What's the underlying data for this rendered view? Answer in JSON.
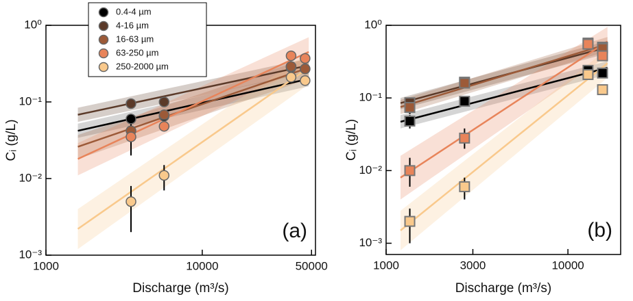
{
  "chart_data": [
    {
      "type": "scatter",
      "marker": "circle",
      "x_scale": "log",
      "y_scale": "log",
      "xlabel": "Discharge (m³/s)",
      "ylabel": "Cᵢ (g/L)",
      "panel_label": "(a)",
      "xlim": [
        1000,
        53000
      ],
      "ylim": [
        0.001,
        1
      ],
      "xticks": [
        1000,
        10000,
        50000
      ],
      "yticks": [
        {
          "value": 0.001,
          "label": "10⁻³"
        },
        {
          "value": 0.01,
          "label": "10⁻²"
        },
        {
          "value": 0.1,
          "label": "10⁻¹"
        },
        {
          "value": 1,
          "label": "10⁰"
        }
      ],
      "legend": "upper left",
      "series": [
        {
          "name": "0.4-4 µm",
          "color": "#000000",
          "x": [
            3500,
            5700,
            37000,
            45500
          ],
          "values": [
            0.06,
            0.065,
            0.28,
            0.27
          ],
          "err_low": [
            0.045,
            null,
            null,
            null
          ],
          "err_high": [
            0.07,
            null,
            null,
            null
          ],
          "fit_x": [
            1600,
            48000
          ],
          "fit_y": [
            0.042,
            0.2
          ],
          "band_low": [
            0.034,
            0.16
          ],
          "band_high": [
            0.052,
            0.25
          ]
        },
        {
          "name": "4-16 µm",
          "color": "#5b3a29",
          "x": [
            3500,
            5700,
            37000,
            45500
          ],
          "values": [
            0.095,
            0.1,
            0.29,
            0.27
          ],
          "err_low": [
            null,
            null,
            null,
            null
          ],
          "err_high": [
            null,
            null,
            null,
            null
          ],
          "fit_x": [
            1600,
            48000
          ],
          "fit_y": [
            0.068,
            0.3
          ],
          "band_low": [
            0.055,
            0.24
          ],
          "band_high": [
            0.084,
            0.37
          ]
        },
        {
          "name": "16-63 µm",
          "color": "#9c5a38",
          "x": [
            3500,
            5700,
            37000,
            45500
          ],
          "values": [
            0.042,
            0.068,
            0.29,
            0.27
          ],
          "err_low": [
            null,
            null,
            null,
            null
          ],
          "err_high": [
            null,
            null,
            null,
            null
          ],
          "fit_x": [
            1600,
            48000
          ],
          "fit_y": [
            0.026,
            0.28
          ],
          "band_low": [
            0.018,
            0.2
          ],
          "band_high": [
            0.037,
            0.38
          ]
        },
        {
          "name": "63-250 µm",
          "color": "#e8845a",
          "x": [
            3500,
            5700,
            37000,
            45500
          ],
          "values": [
            0.035,
            0.048,
            0.4,
            0.37
          ],
          "err_low": [
            0.02,
            null,
            null,
            null
          ],
          "err_high": [
            0.05,
            null,
            null,
            null
          ],
          "fit_x": [
            1600,
            48000
          ],
          "fit_y": [
            0.018,
            0.45
          ],
          "band_low": [
            0.011,
            0.3
          ],
          "band_high": [
            0.029,
            0.7
          ]
        },
        {
          "name": "250-2000 µm",
          "color": "#f9c98c",
          "x": [
            3500,
            5700,
            37000,
            45500
          ],
          "values": [
            0.005,
            0.011,
            0.21,
            0.19
          ],
          "err_low": [
            0.002,
            0.007,
            null,
            null
          ],
          "err_high": [
            0.008,
            0.015,
            null,
            null
          ],
          "fit_x": [
            1600,
            48000
          ],
          "fit_y": [
            0.0022,
            0.28
          ],
          "band_low": [
            0.0012,
            0.17
          ],
          "band_high": [
            0.004,
            0.45
          ]
        }
      ]
    },
    {
      "type": "scatter",
      "marker": "square",
      "x_scale": "log",
      "y_scale": "log",
      "xlabel": "Discharge (m³/s)",
      "ylabel": "Cᵢ (g/L)",
      "panel_label": "(b)",
      "xlim": [
        1000,
        19500
      ],
      "ylim": [
        0.0007,
        1
      ],
      "xticks": [
        1000,
        3000,
        10000
      ],
      "yticks": [
        {
          "value": 0.001,
          "label": "10⁻³"
        },
        {
          "value": 0.01,
          "label": "10⁻²"
        },
        {
          "value": 0.1,
          "label": "10⁻¹"
        },
        {
          "value": 1,
          "label": "10⁰"
        }
      ],
      "series": [
        {
          "color": "#000000",
          "x": [
            1350,
            2700,
            12900,
            15500
          ],
          "values": [
            0.048,
            0.09,
            0.24,
            0.22
          ],
          "err_low": [
            0.038,
            null,
            null,
            null
          ],
          "err_high": [
            0.058,
            null,
            null,
            null
          ],
          "fit_x": [
            1200,
            16500
          ],
          "fit_y": [
            0.047,
            0.26
          ],
          "band_low": [
            0.038,
            0.21
          ],
          "band_high": [
            0.058,
            0.32
          ]
        },
        {
          "color": "#5b3a29",
          "x": [
            1350,
            2700,
            12900,
            15500
          ],
          "values": [
            0.086,
            0.165,
            0.55,
            0.5
          ],
          "err_low": [
            0.06,
            0.14,
            null,
            null
          ],
          "err_high": [
            0.1,
            0.19,
            null,
            null
          ],
          "fit_x": [
            1200,
            16500
          ],
          "fit_y": [
            0.085,
            0.5
          ],
          "band_low": [
            0.07,
            0.41
          ],
          "band_high": [
            0.1,
            0.61
          ]
        },
        {
          "color": "#9c5a38",
          "x": [
            1350,
            2700,
            12900,
            15500
          ],
          "values": [
            0.074,
            0.16,
            0.57,
            0.48
          ],
          "err_low": [
            null,
            null,
            null,
            null
          ],
          "err_high": [
            null,
            null,
            null,
            null
          ],
          "fit_x": [
            1200,
            16500
          ],
          "fit_y": [
            0.075,
            0.55
          ],
          "band_low": [
            0.06,
            0.44
          ],
          "band_high": [
            0.094,
            0.69
          ]
        },
        {
          "color": "#e8845a",
          "x": [
            1350,
            2700,
            12900,
            15500
          ],
          "values": [
            0.01,
            0.028,
            0.55,
            0.38
          ],
          "err_low": [
            0.006,
            0.02,
            null,
            null
          ],
          "err_high": [
            0.015,
            0.038,
            null,
            null
          ],
          "fit_x": [
            1200,
            16500
          ],
          "fit_y": [
            0.008,
            0.6
          ],
          "band_low": [
            0.004,
            0.38
          ],
          "band_high": [
            0.016,
            0.95
          ]
        },
        {
          "color": "#f9c98c",
          "x": [
            1350,
            2700,
            12900,
            15500
          ],
          "values": [
            0.002,
            0.006,
            0.21,
            0.13
          ],
          "err_low": [
            0.001,
            0.004,
            null,
            null
          ],
          "err_high": [
            0.003,
            0.008,
            null,
            null
          ],
          "fit_x": [
            1200,
            16500
          ],
          "fit_y": [
            0.0015,
            0.3
          ],
          "band_low": [
            0.0008,
            0.19
          ],
          "band_high": [
            0.0028,
            0.47
          ]
        }
      ]
    }
  ]
}
